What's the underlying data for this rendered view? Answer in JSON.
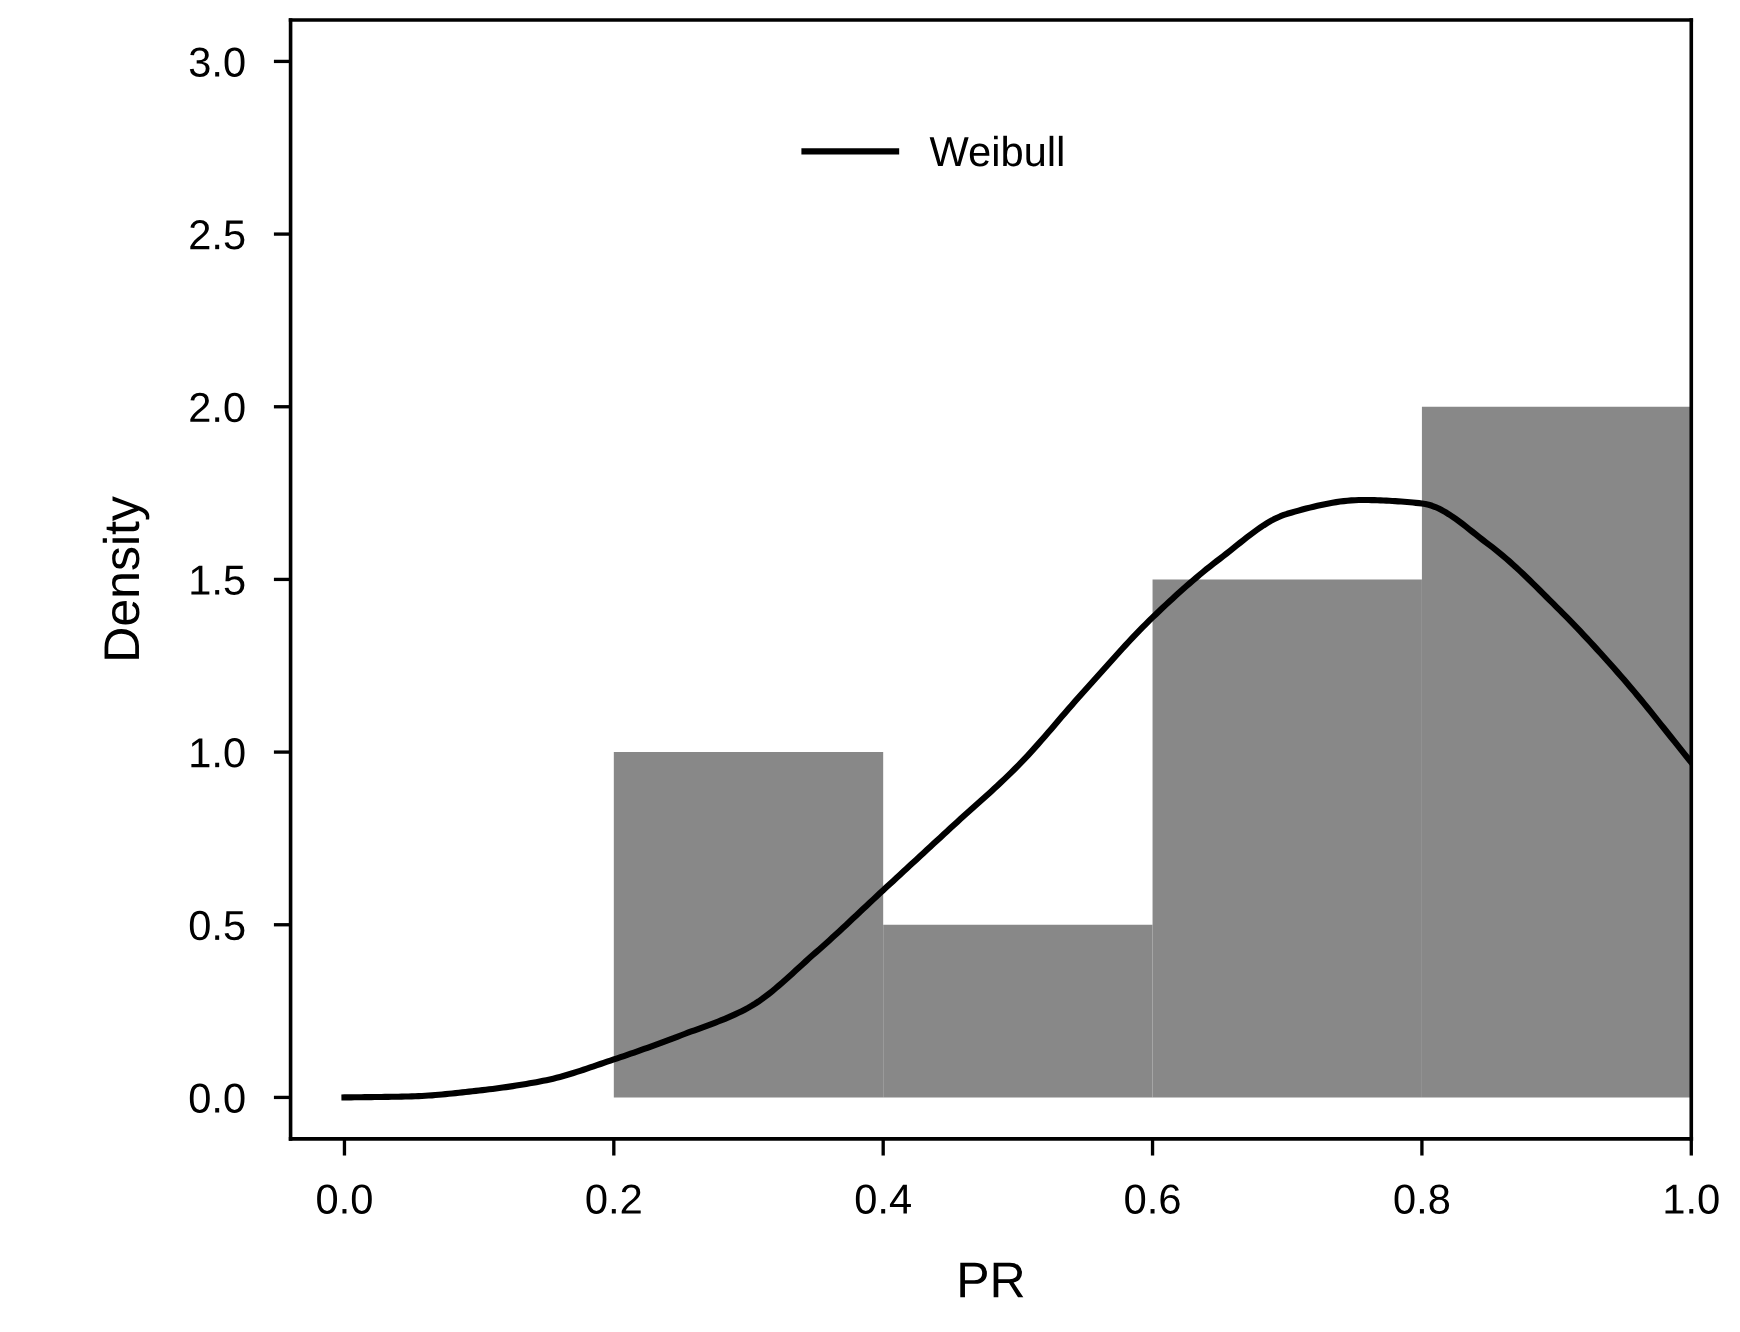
{
  "chart_data": {
    "type": "histogram",
    "xlabel": "PR",
    "ylabel": "Density",
    "bins": [
      0.0,
      0.2,
      0.4,
      0.6,
      0.8,
      1.0
    ],
    "values": [
      0,
      1.0,
      0.5,
      1.5,
      2.0
    ],
    "color": "#888888",
    "series": [
      {
        "name": "Weibull",
        "type": "line",
        "color": "#000000",
        "x": [
          0.0,
          0.05,
          0.1,
          0.15,
          0.2,
          0.25,
          0.3,
          0.35,
          0.4,
          0.45,
          0.5,
          0.55,
          0.6,
          0.65,
          0.7,
          0.756,
          0.8,
          0.85,
          0.9,
          0.95,
          1.0
        ],
        "values": [
          0.0,
          0.003,
          0.02,
          0.05,
          0.11,
          0.18,
          0.26,
          0.42,
          0.6,
          0.78,
          0.96,
          1.18,
          1.39,
          1.56,
          1.69,
          1.73,
          1.72,
          1.6,
          1.42,
          1.21,
          0.97
        ]
      }
    ],
    "xlim": [
      -0.04,
      1.0
    ],
    "ylim": [
      -0.12,
      3.12
    ],
    "xticks": [
      {
        "value": 0.0,
        "label": "0.0"
      },
      0.2,
      0.4,
      0.6,
      0.8,
      {
        "value": 1.0,
        "label": "1.0"
      }
    ],
    "yticks": [
      {
        "value": 0.0,
        "label": "0.0"
      },
      0.5,
      {
        "value": 1.0,
        "label": "1.0"
      },
      1.5,
      {
        "value": 2.0,
        "label": "2.0"
      },
      2.5,
      {
        "value": 3.0,
        "label": "3.0"
      }
    ],
    "grid": false,
    "legend": "top",
    "line_style": "solid",
    "marker": "none"
  }
}
